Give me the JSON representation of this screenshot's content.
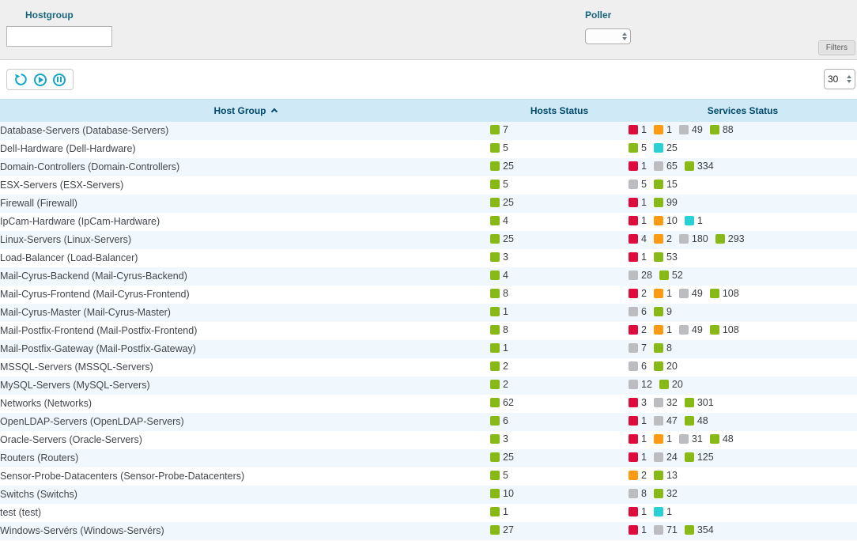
{
  "filter_panel": {
    "hostgroup_label": "Hostgroup",
    "hostgroup_value": "",
    "poller_label": "Poller",
    "poller_value": "",
    "filters_button_label": "Filters"
  },
  "toolbar": {
    "page_size": "30"
  },
  "table": {
    "columns": [
      "Host Group",
      "Hosts Status",
      "Services Status"
    ],
    "status_colors": {
      "green": "#88b917",
      "red": "#e00b3d",
      "orange": "#ff9a13",
      "gray": "#bcbdc0",
      "cyan": "#2ad1d4"
    },
    "rows": [
      {
        "name": "Database-Servers (Database-Servers)",
        "hosts": [
          [
            "green",
            7
          ]
        ],
        "services": [
          [
            "red",
            1
          ],
          [
            "orange",
            1
          ],
          [
            "gray",
            49
          ],
          [
            "green",
            88
          ]
        ]
      },
      {
        "name": "Dell-Hardware (Dell-Hardware)",
        "hosts": [
          [
            "green",
            5
          ]
        ],
        "services": [
          [
            "green",
            5
          ],
          [
            "cyan",
            25
          ]
        ]
      },
      {
        "name": "Domain-Controllers (Domain-Controllers)",
        "hosts": [
          [
            "green",
            25
          ]
        ],
        "services": [
          [
            "red",
            1
          ],
          [
            "gray",
            65
          ],
          [
            "green",
            334
          ]
        ]
      },
      {
        "name": "ESX-Servers (ESX-Servers)",
        "hosts": [
          [
            "green",
            5
          ]
        ],
        "services": [
          [
            "gray",
            5
          ],
          [
            "green",
            15
          ]
        ]
      },
      {
        "name": "Firewall (Firewall)",
        "hosts": [
          [
            "green",
            25
          ]
        ],
        "services": [
          [
            "red",
            1
          ],
          [
            "green",
            99
          ]
        ]
      },
      {
        "name": "IpCam-Hardware (IpCam-Hardware)",
        "hosts": [
          [
            "green",
            4
          ]
        ],
        "services": [
          [
            "red",
            1
          ],
          [
            "orange",
            10
          ],
          [
            "cyan",
            1
          ]
        ]
      },
      {
        "name": "Linux-Servers (Linux-Servers)",
        "hosts": [
          [
            "green",
            25
          ]
        ],
        "services": [
          [
            "red",
            4
          ],
          [
            "orange",
            2
          ],
          [
            "gray",
            180
          ],
          [
            "green",
            293
          ]
        ]
      },
      {
        "name": "Load-Balancer (Load-Balancer)",
        "hosts": [
          [
            "green",
            3
          ]
        ],
        "services": [
          [
            "red",
            1
          ],
          [
            "green",
            53
          ]
        ]
      },
      {
        "name": "Mail-Cyrus-Backend (Mail-Cyrus-Backend)",
        "hosts": [
          [
            "green",
            4
          ]
        ],
        "services": [
          [
            "gray",
            28
          ],
          [
            "green",
            52
          ]
        ]
      },
      {
        "name": "Mail-Cyrus-Frontend (Mail-Cyrus-Frontend)",
        "hosts": [
          [
            "green",
            8
          ]
        ],
        "services": [
          [
            "red",
            2
          ],
          [
            "orange",
            1
          ],
          [
            "gray",
            49
          ],
          [
            "green",
            108
          ]
        ]
      },
      {
        "name": "Mail-Cyrus-Master (Mail-Cyrus-Master)",
        "hosts": [
          [
            "green",
            1
          ]
        ],
        "services": [
          [
            "gray",
            6
          ],
          [
            "green",
            9
          ]
        ]
      },
      {
        "name": "Mail-Postfix-Frontend (Mail-Postfix-Frontend)",
        "hosts": [
          [
            "green",
            8
          ]
        ],
        "services": [
          [
            "red",
            2
          ],
          [
            "orange",
            1
          ],
          [
            "gray",
            49
          ],
          [
            "green",
            108
          ]
        ]
      },
      {
        "name": "Mail-Postfix-Gateway (Mail-Postfix-Gateway)",
        "hosts": [
          [
            "green",
            1
          ]
        ],
        "services": [
          [
            "gray",
            7
          ],
          [
            "green",
            8
          ]
        ]
      },
      {
        "name": "MSSQL-Servers (MSSQL-Servers)",
        "hosts": [
          [
            "green",
            2
          ]
        ],
        "services": [
          [
            "gray",
            6
          ],
          [
            "green",
            20
          ]
        ]
      },
      {
        "name": "MySQL-Servers (MySQL-Servers)",
        "hosts": [
          [
            "green",
            2
          ]
        ],
        "services": [
          [
            "gray",
            12
          ],
          [
            "green",
            20
          ]
        ]
      },
      {
        "name": "Networks (Networks)",
        "hosts": [
          [
            "green",
            62
          ]
        ],
        "services": [
          [
            "red",
            3
          ],
          [
            "gray",
            32
          ],
          [
            "green",
            301
          ]
        ]
      },
      {
        "name": "OpenLDAP-Servers (OpenLDAP-Servers)",
        "hosts": [
          [
            "green",
            6
          ]
        ],
        "services": [
          [
            "red",
            1
          ],
          [
            "gray",
            47
          ],
          [
            "green",
            48
          ]
        ]
      },
      {
        "name": "Oracle-Servers (Oracle-Servers)",
        "hosts": [
          [
            "green",
            3
          ]
        ],
        "services": [
          [
            "red",
            1
          ],
          [
            "orange",
            1
          ],
          [
            "gray",
            31
          ],
          [
            "green",
            48
          ]
        ]
      },
      {
        "name": "Routers (Routers)",
        "hosts": [
          [
            "green",
            25
          ]
        ],
        "services": [
          [
            "red",
            1
          ],
          [
            "gray",
            24
          ],
          [
            "green",
            125
          ]
        ]
      },
      {
        "name": "Sensor-Probe-Datacenters (Sensor-Probe-Datacenters)",
        "hosts": [
          [
            "green",
            5
          ]
        ],
        "services": [
          [
            "orange",
            2
          ],
          [
            "green",
            13
          ]
        ]
      },
      {
        "name": "Switchs (Switchs)",
        "hosts": [
          [
            "green",
            10
          ]
        ],
        "services": [
          [
            "gray",
            8
          ],
          [
            "green",
            32
          ]
        ]
      },
      {
        "name": "test (test)",
        "hosts": [
          [
            "green",
            1
          ]
        ],
        "services": [
          [
            "red",
            1
          ],
          [
            "cyan",
            1
          ]
        ]
      },
      {
        "name": "Windows-Servérs (Windows-Servérs)",
        "hosts": [
          [
            "green",
            27
          ]
        ],
        "services": [
          [
            "red",
            1
          ],
          [
            "gray",
            71
          ],
          [
            "green",
            354
          ]
        ]
      }
    ]
  }
}
